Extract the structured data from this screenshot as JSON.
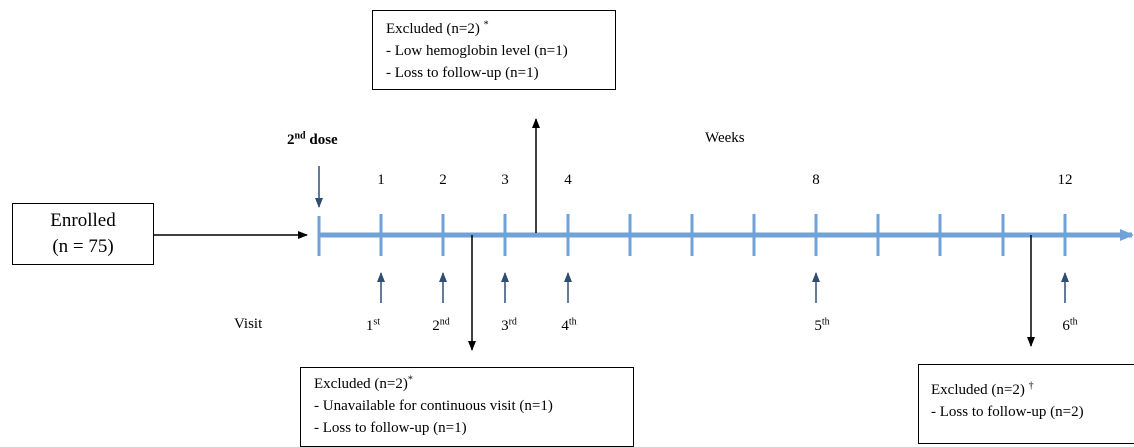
{
  "header": {
    "dose_number": "2",
    "dose_suffix": "nd",
    "dose_word": " dose",
    "weeks_label": "Weeks",
    "visit_label": "Visit"
  },
  "enrolled": {
    "line1": "Enrolled",
    "line2": "(n = 75)"
  },
  "timeline": {
    "week_labels": [
      "1",
      "2",
      "3",
      "4",
      "8",
      "12"
    ],
    "visits": [
      {
        "num": "1",
        "suffix": "st"
      },
      {
        "num": "2",
        "suffix": "nd"
      },
      {
        "num": "3",
        "suffix": "rd"
      },
      {
        "num": "4",
        "suffix": "th"
      },
      {
        "num": "5",
        "suffix": "th"
      },
      {
        "num": "6",
        "suffix": "th"
      }
    ],
    "color": "#6fa3d8",
    "marker_color": "#2f4f72"
  },
  "excluded_top": {
    "title": "Excluded (n=2)",
    "mark": "*",
    "items": [
      "- Low hemoglobin level (n=1)",
      "- Loss to follow-up (n=1)"
    ]
  },
  "excluded_mid": {
    "title": "Excluded (n=2)",
    "mark": "*",
    "items": [
      "- Unavailable for continuous visit (n=1)",
      "- Loss to follow-up (n=1)"
    ]
  },
  "excluded_right": {
    "title": "Excluded (n=2)",
    "mark": "†",
    "items": [
      "- Loss to follow-up (n=2)"
    ]
  }
}
